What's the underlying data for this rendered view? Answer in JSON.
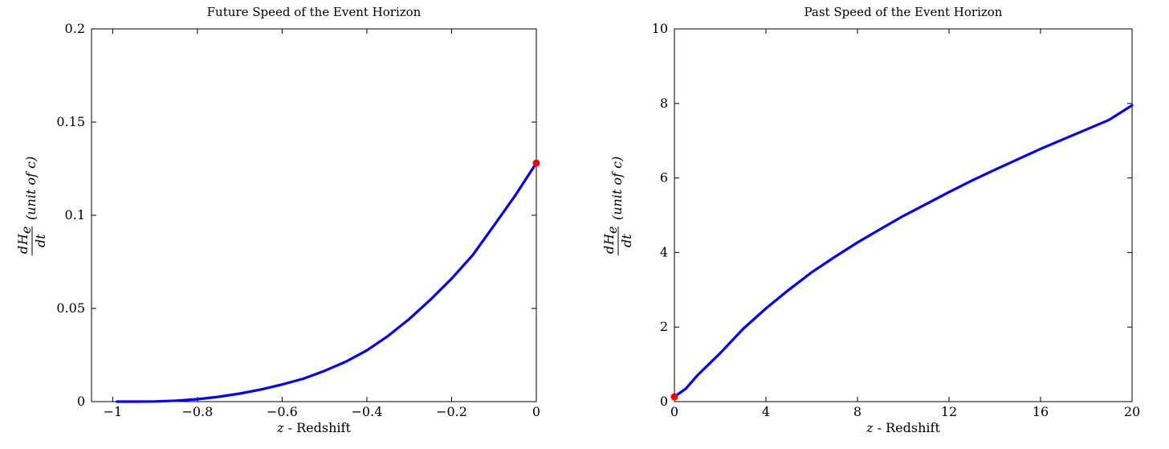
{
  "chart_data": [
    {
      "type": "line",
      "title": "Future Speed of the Event Horizon",
      "xlabel_var": "z",
      "xlabel_rest": " - Redshift",
      "ylabel": {
        "num_d": "d",
        "num_H": "H",
        "num_sub": "e",
        "den": "dt",
        "unit": "(unit of c)"
      },
      "xlim": [
        -1.05,
        0
      ],
      "ylim": [
        0,
        0.2
      ],
      "xticks": [
        -1,
        -0.8,
        -0.6,
        -0.4,
        -0.2,
        0
      ],
      "xtick_labels": [
        "−1",
        "−0.8",
        "−0.6",
        "−0.4",
        "−0.2",
        "0"
      ],
      "yticks": [
        0,
        0.05,
        0.1,
        0.15,
        0.2
      ],
      "ytick_labels": [
        "0",
        "0.05",
        "0.1",
        "0.15",
        "0.2"
      ],
      "grid": false,
      "series": [
        {
          "color": "#0000ff",
          "x": [
            -0.99,
            -0.95,
            -0.9,
            -0.85,
            -0.8,
            -0.75,
            -0.7,
            -0.65,
            -0.6,
            -0.55,
            -0.5,
            -0.45,
            -0.4,
            -0.35,
            -0.3,
            -0.25,
            -0.2,
            -0.15,
            -0.1,
            -0.05,
            0
          ],
          "y": [
            0.0,
            0.0,
            0.0001,
            0.0005,
            0.0013,
            0.0026,
            0.0043,
            0.0065,
            0.0092,
            0.0123,
            0.0165,
            0.0214,
            0.0275,
            0.0352,
            0.0443,
            0.0547,
            0.066,
            0.0787,
            0.0945,
            0.1105,
            0.128
          ]
        }
      ],
      "marker": {
        "x": 0,
        "y": 0.128,
        "color": "#ff0000"
      }
    },
    {
      "type": "line",
      "title": "Past Speed of the Event Horizon",
      "xlabel_var": "z",
      "xlabel_rest": " - Redshift",
      "ylabel": {
        "num_d": "d",
        "num_H": "H",
        "num_sub": "e",
        "den": "dt",
        "unit": "(unit of c)"
      },
      "xlim": [
        0,
        20
      ],
      "ylim": [
        0,
        10
      ],
      "xticks": [
        0,
        4,
        8,
        12,
        16,
        20
      ],
      "xtick_labels": [
        "0",
        "4",
        "8",
        "12",
        "16",
        "20"
      ],
      "yticks": [
        0,
        2,
        4,
        6,
        8,
        10
      ],
      "ytick_labels": [
        "0",
        "2",
        "4",
        "6",
        "8",
        "10"
      ],
      "grid": false,
      "series": [
        {
          "color": "#0000ff",
          "x": [
            0,
            0.5,
            1,
            2,
            3,
            4,
            5,
            6,
            7,
            8,
            9,
            10,
            11,
            12,
            13,
            14,
            15,
            16,
            17,
            18,
            19,
            20
          ],
          "y": [
            0.128,
            0.35,
            0.7,
            1.3,
            1.95,
            2.5,
            3.0,
            3.47,
            3.88,
            4.27,
            4.63,
            4.98,
            5.3,
            5.62,
            5.93,
            6.22,
            6.5,
            6.78,
            7.04,
            7.3,
            7.56,
            7.95
          ]
        }
      ],
      "marker": {
        "x": 0,
        "y": 0.128,
        "color": "#ff0000"
      }
    }
  ]
}
